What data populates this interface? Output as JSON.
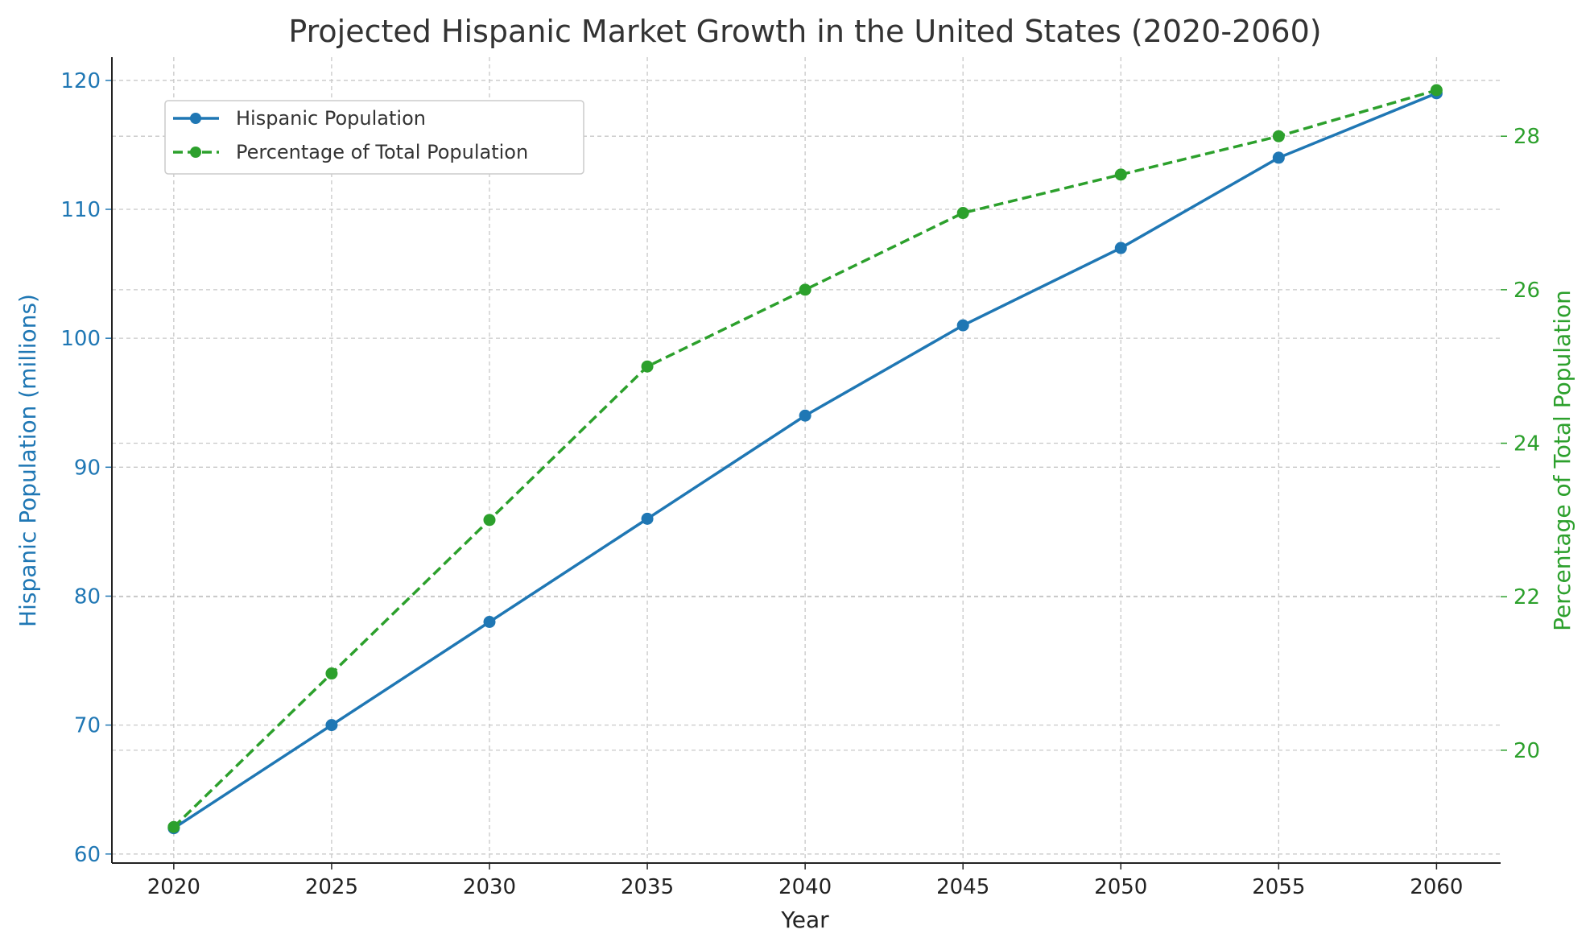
{
  "chart_data": {
    "type": "line",
    "title": "Projected Hispanic Market Growth in the United States (2020-2060)",
    "xlabel": "Year",
    "ylabel_left": "Hispanic Population (millions)",
    "ylabel_right": "Percentage of Total Population",
    "x": [
      2020,
      2025,
      2030,
      2035,
      2040,
      2045,
      2050,
      2055,
      2060
    ],
    "x_ticks": [
      "2020",
      "2025",
      "2030",
      "2035",
      "2040",
      "2045",
      "2050",
      "2055",
      "2060"
    ],
    "xlim": [
      2018.04,
      2062.03
    ],
    "ylim_left": [
      59.3,
      121.8
    ],
    "ylim_right": [
      18.53,
      29.03
    ],
    "y_ticks_left": [
      "60",
      "70",
      "80",
      "90",
      "100",
      "110",
      "120"
    ],
    "y_ticks_right": [
      "20",
      "22",
      "24",
      "26",
      "28"
    ],
    "grid": true,
    "legend_position": "top-left",
    "series": [
      {
        "name": "Hispanic Population",
        "axis": "left",
        "color": "#1f77b4",
        "style": "solid",
        "values": [
          62,
          70,
          78,
          86,
          94,
          101,
          107,
          114,
          119
        ]
      },
      {
        "name": "Percentage of Total Population",
        "axis": "right",
        "color": "#2ca02c",
        "style": "dashed",
        "values": [
          19,
          21,
          23,
          25,
          26,
          27,
          27.5,
          28,
          28.6
        ]
      }
    ]
  }
}
